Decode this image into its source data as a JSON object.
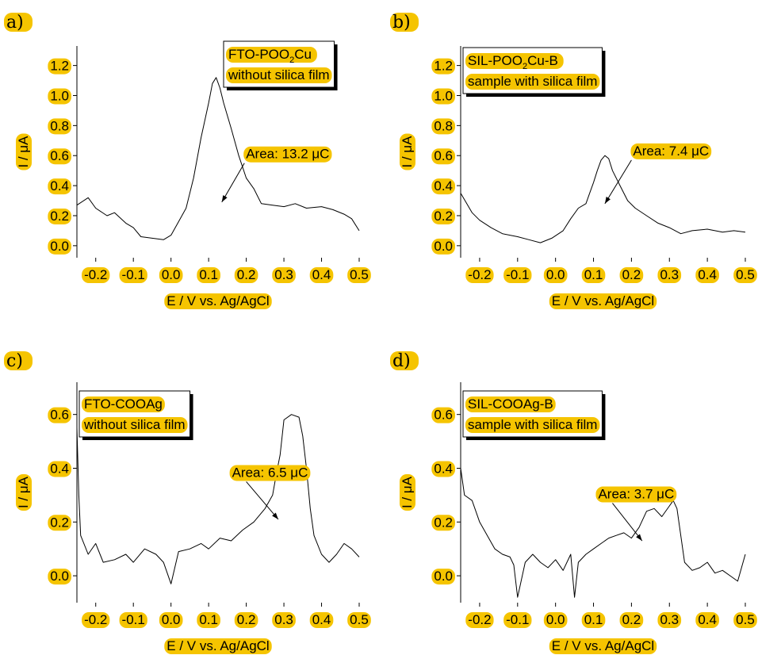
{
  "chart_data": [
    {
      "type": "line",
      "panel_label": "a)",
      "legend": [
        "FTO-POO₂Cu",
        "without silica film"
      ],
      "legend_parts": {
        "pre": "FTO-POO",
        "sub": "2",
        "post": "Cu"
      },
      "annotation": "Area: 13.2 μC",
      "xlabel": "E / V vs. Ag/AgCl",
      "ylabel": "I / μA",
      "xlim": [
        -0.25,
        0.5
      ],
      "ylim": [
        -0.08,
        1.33
      ],
      "xticks": [
        "-0.2",
        "-0.1",
        "0.0",
        "0.1",
        "0.2",
        "0.3",
        "0.4",
        "0.5"
      ],
      "yticks": [
        "0.0",
        "0.2",
        "0.4",
        "0.6",
        "0.8",
        "1.0",
        "1.2"
      ],
      "arrow": {
        "from": [
          0.195,
          0.55
        ],
        "to": [
          0.135,
          0.29
        ]
      },
      "x": [
        -0.25,
        -0.22,
        -0.2,
        -0.17,
        -0.15,
        -0.12,
        -0.1,
        -0.08,
        -0.05,
        -0.02,
        0.0,
        0.02,
        0.04,
        0.06,
        0.08,
        0.1,
        0.11,
        0.12,
        0.13,
        0.14,
        0.16,
        0.18,
        0.2,
        0.22,
        0.24,
        0.27,
        0.3,
        0.33,
        0.36,
        0.4,
        0.43,
        0.46,
        0.48,
        0.5
      ],
      "values": [
        0.27,
        0.32,
        0.25,
        0.2,
        0.22,
        0.15,
        0.12,
        0.06,
        0.05,
        0.04,
        0.07,
        0.16,
        0.25,
        0.45,
        0.72,
        0.95,
        1.08,
        1.12,
        1.05,
        0.95,
        0.78,
        0.6,
        0.45,
        0.38,
        0.28,
        0.27,
        0.26,
        0.28,
        0.25,
        0.26,
        0.24,
        0.21,
        0.18,
        0.1
      ]
    },
    {
      "type": "line",
      "panel_label": "b)",
      "legend": [
        "SIL-POO₂Cu-B",
        "sample with silica film"
      ],
      "legend_parts": {
        "pre": "SIL-POO",
        "sub": "2",
        "post": "Cu-B"
      },
      "annotation": "Area: 7.4 μC",
      "xlabel": "E / V vs. Ag/AgCl",
      "ylabel": "I / μA",
      "xlim": [
        -0.25,
        0.5
      ],
      "ylim": [
        -0.08,
        1.33
      ],
      "xticks": [
        "-0.2",
        "-0.1",
        "0.0",
        "0.1",
        "0.2",
        "0.3",
        "0.4",
        "0.5"
      ],
      "yticks": [
        "0.0",
        "0.2",
        "0.4",
        "0.6",
        "0.8",
        "1.0",
        "1.2"
      ],
      "arrow": {
        "from": [
          0.2,
          0.57
        ],
        "to": [
          0.13,
          0.28
        ]
      },
      "x": [
        -0.25,
        -0.22,
        -0.2,
        -0.17,
        -0.14,
        -0.1,
        -0.07,
        -0.04,
        -0.01,
        0.02,
        0.04,
        0.06,
        0.08,
        0.09,
        0.1,
        0.11,
        0.12,
        0.13,
        0.14,
        0.15,
        0.17,
        0.19,
        0.21,
        0.24,
        0.27,
        0.3,
        0.33,
        0.36,
        0.4,
        0.44,
        0.47,
        0.5
      ],
      "values": [
        0.35,
        0.22,
        0.17,
        0.12,
        0.08,
        0.06,
        0.04,
        0.02,
        0.05,
        0.1,
        0.18,
        0.25,
        0.28,
        0.35,
        0.42,
        0.5,
        0.57,
        0.6,
        0.58,
        0.5,
        0.4,
        0.3,
        0.25,
        0.2,
        0.15,
        0.12,
        0.08,
        0.1,
        0.11,
        0.09,
        0.1,
        0.09
      ]
    },
    {
      "type": "line",
      "panel_label": "c)",
      "legend": [
        "FTO-COOAg",
        "without silica film"
      ],
      "legend_parts": {
        "pre": "FTO-COOAg",
        "sub": "",
        "post": ""
      },
      "annotation": "Area: 6.5 μC",
      "xlabel": "E / V vs. Ag/AgCl",
      "ylabel": "I / μA",
      "xlim": [
        -0.25,
        0.5
      ],
      "ylim": [
        -0.1,
        0.72
      ],
      "xticks": [
        "-0.2",
        "-0.1",
        "0.0",
        "0.1",
        "0.2",
        "0.3",
        "0.4",
        "0.5"
      ],
      "yticks": [
        "0.0",
        "0.2",
        "0.4",
        "0.6"
      ],
      "arrow": {
        "from": [
          0.2,
          0.35
        ],
        "to": [
          0.285,
          0.21
        ]
      },
      "x": [
        -0.25,
        -0.245,
        -0.24,
        -0.22,
        -0.2,
        -0.18,
        -0.15,
        -0.12,
        -0.1,
        -0.07,
        -0.04,
        -0.02,
        0.0,
        0.02,
        0.05,
        0.08,
        0.1,
        0.13,
        0.16,
        0.19,
        0.22,
        0.25,
        0.27,
        0.28,
        0.29,
        0.3,
        0.32,
        0.34,
        0.35,
        0.36,
        0.37,
        0.38,
        0.4,
        0.42,
        0.44,
        0.46,
        0.48,
        0.5
      ],
      "values": [
        0.55,
        0.3,
        0.15,
        0.08,
        0.12,
        0.05,
        0.06,
        0.08,
        0.05,
        0.1,
        0.08,
        0.05,
        -0.03,
        0.09,
        0.1,
        0.12,
        0.1,
        0.14,
        0.13,
        0.17,
        0.2,
        0.25,
        0.3,
        0.38,
        0.45,
        0.58,
        0.6,
        0.59,
        0.52,
        0.4,
        0.25,
        0.15,
        0.08,
        0.05,
        0.08,
        0.12,
        0.1,
        0.07
      ]
    },
    {
      "type": "line",
      "panel_label": "d)",
      "legend": [
        "SIL-COOAg-B",
        "sample with silica film"
      ],
      "legend_parts": {
        "pre": "SIL-COOAg-B",
        "sub": "",
        "post": ""
      },
      "annotation": "Area: 3.7 μC",
      "xlabel": "E / V vs. Ag/AgCl",
      "ylabel": "I / μA",
      "xlim": [
        -0.25,
        0.5
      ],
      "ylim": [
        -0.1,
        0.72
      ],
      "xticks": [
        "-0.2",
        "-0.1",
        "0.0",
        "0.1",
        "0.2",
        "0.3",
        "0.4",
        "0.5"
      ],
      "yticks": [
        "0.0",
        "0.2",
        "0.4",
        "0.6"
      ],
      "arrow": {
        "from": [
          0.15,
          0.27
        ],
        "to": [
          0.228,
          0.13
        ]
      },
      "x": [
        -0.25,
        -0.24,
        -0.22,
        -0.2,
        -0.18,
        -0.16,
        -0.14,
        -0.12,
        -0.11,
        -0.1,
        -0.08,
        -0.06,
        -0.04,
        -0.02,
        0.0,
        0.02,
        0.04,
        0.05,
        0.06,
        0.08,
        0.1,
        0.12,
        0.14,
        0.16,
        0.18,
        0.2,
        0.22,
        0.24,
        0.26,
        0.28,
        0.3,
        0.31,
        0.32,
        0.34,
        0.36,
        0.38,
        0.4,
        0.42,
        0.44,
        0.46,
        0.48,
        0.5
      ],
      "values": [
        0.4,
        0.3,
        0.28,
        0.2,
        0.15,
        0.1,
        0.08,
        0.07,
        0.04,
        -0.08,
        0.05,
        0.08,
        0.05,
        0.03,
        0.06,
        0.02,
        0.08,
        -0.08,
        0.05,
        0.08,
        0.1,
        0.12,
        0.14,
        0.15,
        0.16,
        0.14,
        0.18,
        0.24,
        0.25,
        0.22,
        0.26,
        0.28,
        0.25,
        0.05,
        0.02,
        0.03,
        0.05,
        0.01,
        0.02,
        0.0,
        -0.02,
        0.08
      ]
    }
  ]
}
